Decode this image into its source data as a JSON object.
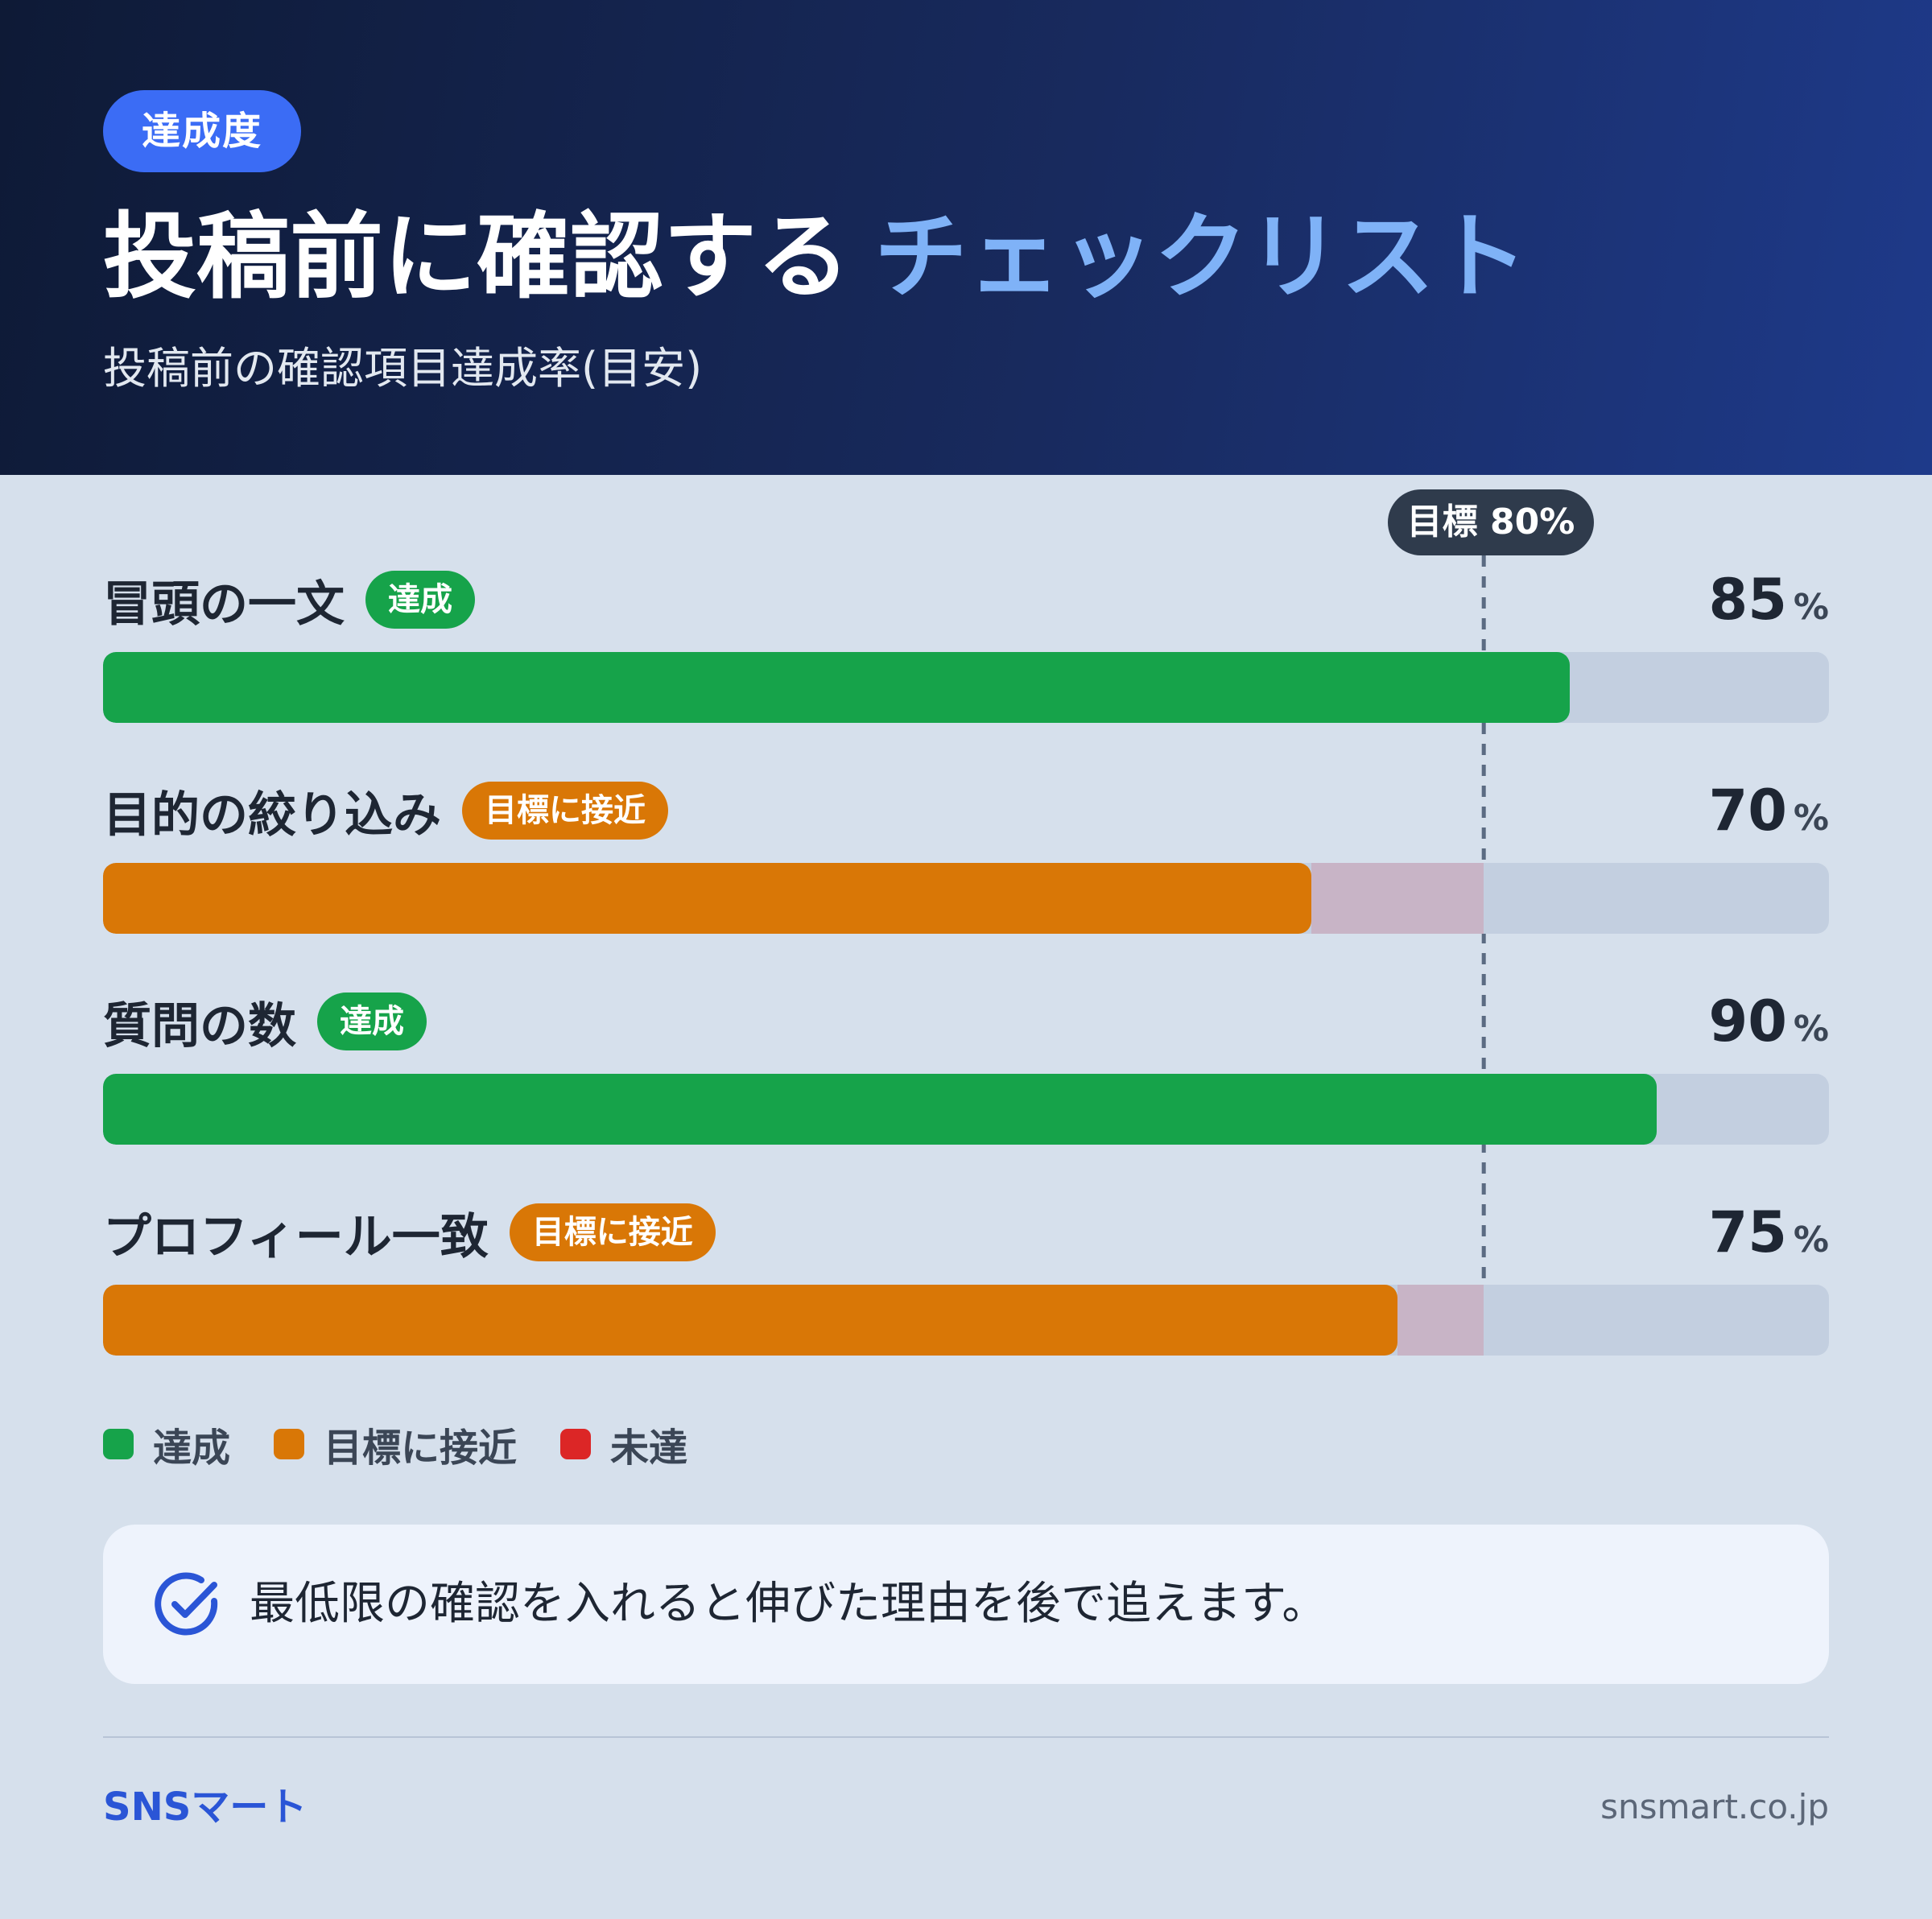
{
  "header": {
    "badge": "達成度",
    "title_main": "投稿前に確認する",
    "title_accent": "チェックリスト",
    "subtitle": "投稿前の確認項目達成率(目安)"
  },
  "chart_data": {
    "type": "bar",
    "orientation": "horizontal",
    "categories": [
      "冒頭の一文",
      "目的の絞り込み",
      "質問の数",
      "プロフィール一致"
    ],
    "values": [
      85,
      70,
      90,
      75
    ],
    "status": [
      "達成",
      "目標に接近",
      "達成",
      "目標に接近"
    ],
    "unit": "%",
    "xlim": [
      0,
      100
    ],
    "target": {
      "value": 80,
      "label": "目標 80%"
    },
    "legend": [
      {
        "label": "達成",
        "color": "#16a34a"
      },
      {
        "label": "目標に接近",
        "color": "#d97706"
      },
      {
        "label": "未達",
        "color": "#dc2626"
      }
    ],
    "legend_position": "bottom-left",
    "grid": false
  },
  "colors": {
    "achieved": "#16a34a",
    "near": "#d97706",
    "missed": "#dc2626",
    "track": "#c3cfe0",
    "gap_to_target": "#c8b4c6",
    "accent": "#3b6cf5"
  },
  "note": {
    "icon": "check-circle-icon",
    "text": "最低限の確認を入れると伸びた理由を後で追えます。"
  },
  "footer": {
    "brand": "SNSマート",
    "site": "snsmart.co.jp"
  }
}
